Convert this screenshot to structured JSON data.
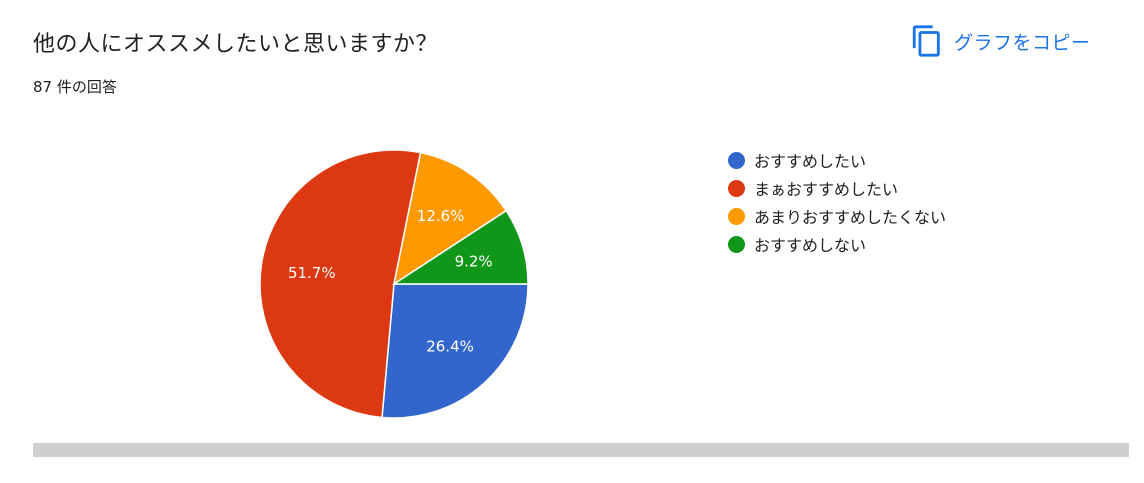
{
  "question": {
    "title": "他の人にオススメしたいと思いますか？",
    "response_count": "87 件の回答"
  },
  "toolbar": {
    "copy_label": "グラフをコピー",
    "copy_icon": "copy-icon"
  },
  "colors": {
    "accent": "#1a73e8",
    "slice_colors": [
      "#3366cc",
      "#dc3912",
      "#ff9900",
      "#109618"
    ]
  },
  "chart_data": {
    "type": "pie",
    "labels": [
      "おすすめしたい",
      "まぁおすすめしたい",
      "あまりおすすめしたくない",
      "おすすめしない"
    ],
    "values": [
      26.4,
      51.7,
      12.6,
      9.2
    ],
    "value_labels": [
      "26.4%",
      "51.7%",
      "12.6%",
      "9.2%"
    ],
    "legend_position": "right"
  }
}
